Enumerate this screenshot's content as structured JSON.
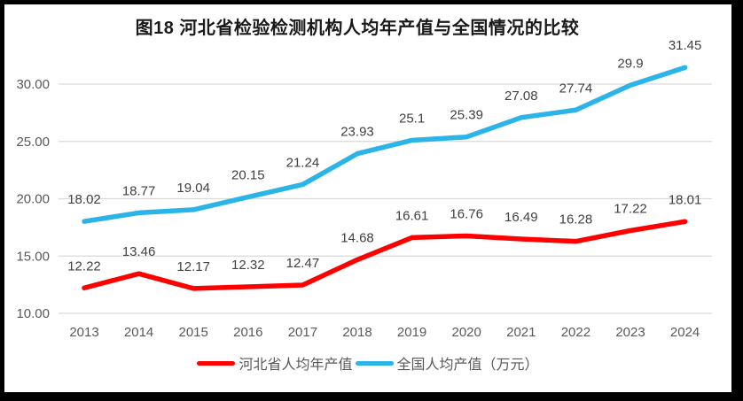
{
  "title": "图18 河北省检验检测机构人均年产值与全国情况的比较",
  "colors": {
    "hebei_line": "#FF0000",
    "national_line": "#2BB4E8",
    "gridline": "#D9D9D9",
    "axis_text": "#595959",
    "data_label_text": "#404040",
    "frame_border": "#000000"
  },
  "chart_data": {
    "type": "line",
    "title": "图18 河北省检验检测机构人均年产值与全国情况的比较",
    "categories": [
      "2013",
      "2014",
      "2015",
      "2016",
      "2017",
      "2018",
      "2019",
      "2020",
      "2021",
      "2022",
      "2023",
      "2024"
    ],
    "series": [
      {
        "name": "河北省人均年产值",
        "color": "#FF0000",
        "values": [
          12.22,
          13.46,
          12.17,
          12.32,
          12.47,
          14.68,
          16.61,
          16.76,
          16.49,
          16.28,
          17.22,
          18.01
        ],
        "labels": [
          "12.22",
          "13.46",
          "12.17",
          "12.32",
          "12.47",
          "14.68",
          "16.61",
          "16.76",
          "16.49",
          "16.28",
          "17.22",
          "18.01"
        ]
      },
      {
        "name": "全国人均产值（万元）",
        "color": "#2BB4E8",
        "values": [
          18.02,
          18.77,
          19.04,
          20.15,
          21.24,
          23.93,
          25.1,
          25.39,
          27.08,
          27.74,
          29.9,
          31.45
        ],
        "labels": [
          "18.02",
          "18.77",
          "19.04",
          "20.15",
          "21.24",
          "23.93",
          "25.1",
          "25.39",
          "27.08",
          "27.74",
          "29.9",
          "31.45"
        ]
      }
    ],
    "y_ticks": [
      {
        "value": 10,
        "label": "10.00"
      },
      {
        "value": 15,
        "label": "15.00"
      },
      {
        "value": 20,
        "label": "20.00"
      },
      {
        "value": 25,
        "label": "25.00"
      },
      {
        "value": 30,
        "label": "30.00"
      }
    ],
    "ylim": [
      10,
      32.5
    ],
    "xlabel": "",
    "ylabel": "",
    "grid": true,
    "legend_position": "bottom"
  }
}
